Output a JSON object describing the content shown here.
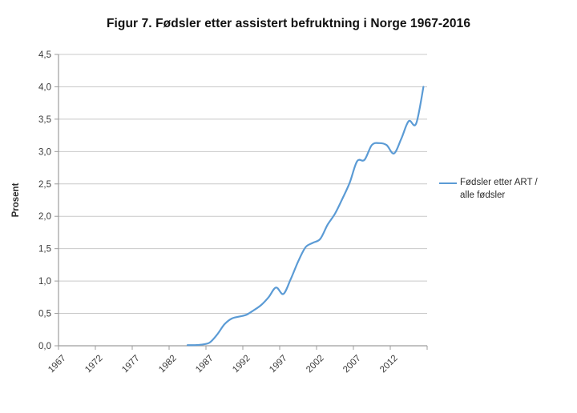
{
  "chart_data": {
    "type": "line",
    "title": "Figur 7. Fødsler etter assistert befruktning i Norge 1967-2016",
    "xlabel": "",
    "ylabel": "Prosent",
    "ylim": [
      0,
      4.5
    ],
    "y_tick_step": 0.5,
    "y_tick_labels": [
      "0,0",
      "0,5",
      "1,0",
      "1,5",
      "2,0",
      "2,5",
      "3,0",
      "3,5",
      "4,0",
      "4,5"
    ],
    "x_range": [
      1967,
      2016
    ],
    "x_tick_years": [
      1967,
      1972,
      1977,
      1982,
      1987,
      1992,
      1997,
      2002,
      2007,
      2012
    ],
    "grid": "horizontal",
    "legend": {
      "position": "right",
      "lines": [
        "Fødsler etter ART /",
        "alle fødsler"
      ]
    },
    "series": [
      {
        "name": "Fødsler etter ART / alle fødsler",
        "color": "#5B9BD5",
        "smooth": true,
        "points": [
          [
            1984,
            0.01
          ],
          [
            1985,
            0.01
          ],
          [
            1986,
            0.02
          ],
          [
            1987,
            0.05
          ],
          [
            1988,
            0.17
          ],
          [
            1989,
            0.33
          ],
          [
            1990,
            0.42
          ],
          [
            1991,
            0.45
          ],
          [
            1992,
            0.48
          ],
          [
            1993,
            0.55
          ],
          [
            1994,
            0.63
          ],
          [
            1995,
            0.75
          ],
          [
            1996,
            0.9
          ],
          [
            1997,
            0.8
          ],
          [
            1998,
            1.03
          ],
          [
            1999,
            1.3
          ],
          [
            2000,
            1.52
          ],
          [
            2001,
            1.59
          ],
          [
            2002,
            1.65
          ],
          [
            2003,
            1.87
          ],
          [
            2004,
            2.04
          ],
          [
            2005,
            2.27
          ],
          [
            2006,
            2.52
          ],
          [
            2007,
            2.85
          ],
          [
            2008,
            2.87
          ],
          [
            2009,
            3.1
          ],
          [
            2010,
            3.13
          ],
          [
            2011,
            3.1
          ],
          [
            2012,
            2.97
          ],
          [
            2013,
            3.2
          ],
          [
            2014,
            3.47
          ],
          [
            2015,
            3.43
          ],
          [
            2016,
            4.0
          ]
        ]
      }
    ],
    "colors": {
      "grid": "#C9C9C9",
      "axis": "#9D9D9D",
      "tick_text": "#3A3A3A",
      "line": "#5B9BD5"
    }
  }
}
